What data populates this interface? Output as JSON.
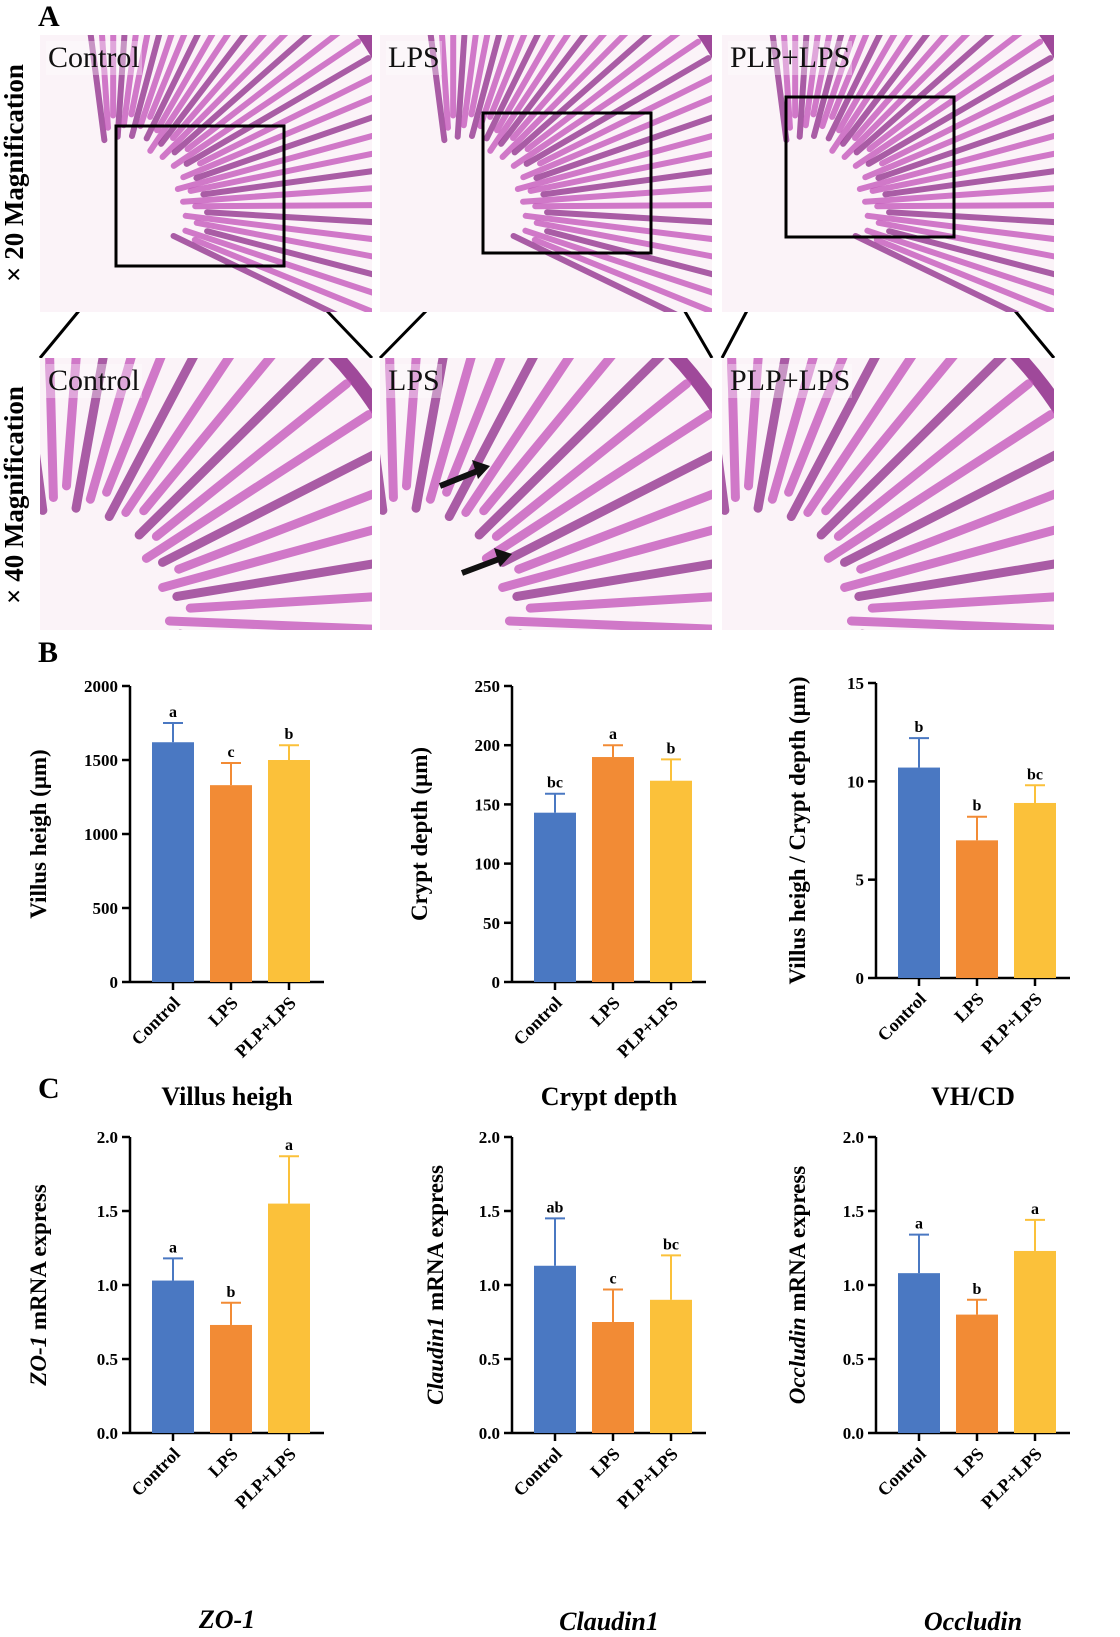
{
  "panel_labels": {
    "a": "A",
    "b": "B",
    "c": "C"
  },
  "row_labels": {
    "top": "× 20 Magnification",
    "bottom": "× 40 Magnification"
  },
  "micrographs": {
    "top": [
      "Control",
      "LPS",
      "PLP+LPS"
    ],
    "bottom": [
      "Control",
      "LPS",
      "PLP+LPS"
    ]
  },
  "colors": {
    "control": "#4a78c2",
    "lps": "#f28b35",
    "plp": "#fbc13a",
    "tissue": "#c24fb8",
    "tissue_dark": "#8e2a8a"
  },
  "chart_data": [
    {
      "id": "villus",
      "type": "bar",
      "categories": [
        "Control",
        "LPS",
        "PLP+LPS"
      ],
      "values": [
        1620,
        1330,
        1500
      ],
      "errors": [
        130,
        150,
        100
      ],
      "letters": [
        "a",
        "c",
        "b"
      ],
      "ylabel": "Villus heigh (μm)",
      "ylabel_italic": "",
      "ylabel_rest": "Villus heigh (μm)",
      "ylim": [
        0,
        2000
      ],
      "ticks": [
        0,
        500,
        1000,
        1500,
        2000
      ],
      "tick_labels": [
        "0",
        "500",
        "1000",
        "1500",
        "2000"
      ],
      "title": "Villus heigh",
      "title_italic": false
    },
    {
      "id": "crypt",
      "type": "bar",
      "categories": [
        "Control",
        "LPS",
        "PLP+LPS"
      ],
      "values": [
        143,
        190,
        170
      ],
      "errors": [
        16,
        10,
        18
      ],
      "letters": [
        "bc",
        "a",
        "b"
      ],
      "ylabel": "Crypt depth (μm)",
      "ylabel_italic": "",
      "ylabel_rest": "Crypt depth (μm)",
      "ylim": [
        0,
        250
      ],
      "ticks": [
        0,
        50,
        100,
        150,
        200,
        250
      ],
      "tick_labels": [
        "0",
        "50",
        "100",
        "150",
        "200",
        "250"
      ],
      "title": "Crypt depth",
      "title_italic": false
    },
    {
      "id": "vhcd",
      "type": "bar",
      "categories": [
        "Control",
        "LPS",
        "PLP+LPS"
      ],
      "values": [
        10.7,
        7.0,
        8.9
      ],
      "errors": [
        1.5,
        1.2,
        0.9
      ],
      "letters": [
        "b",
        "b",
        "bc"
      ],
      "ylabel": "Villus heigh / Crypt depth (μm)",
      "ylabel_italic": "",
      "ylabel_rest": "Villus heigh / Crypt depth (μm)",
      "ylim": [
        0,
        15
      ],
      "ticks": [
        0,
        5,
        10,
        15
      ],
      "tick_labels": [
        "0",
        "5",
        "10",
        "15"
      ],
      "title": "VH/CD",
      "title_italic": false
    },
    {
      "id": "zo1",
      "type": "bar",
      "categories": [
        "Control",
        "LPS",
        "PLP+LPS"
      ],
      "values": [
        1.03,
        0.73,
        1.55
      ],
      "errors": [
        0.15,
        0.15,
        0.32
      ],
      "letters": [
        "a",
        "b",
        "a"
      ],
      "ylabel": "ZO-1 mRNA express",
      "ylabel_italic": "ZO-1",
      "ylabel_rest": " mRNA express",
      "ylim": [
        0,
        2.0
      ],
      "ticks": [
        0,
        0.5,
        1.0,
        1.5,
        2.0
      ],
      "tick_labels": [
        "0.0",
        "0.5",
        "1.0",
        "1.5",
        "2.0"
      ],
      "title": "ZO-1",
      "title_italic": true
    },
    {
      "id": "claudin1",
      "type": "bar",
      "categories": [
        "Control",
        "LPS",
        "PLP+LPS"
      ],
      "values": [
        1.13,
        0.75,
        0.9
      ],
      "errors": [
        0.32,
        0.22,
        0.3
      ],
      "letters": [
        "ab",
        "c",
        "bc"
      ],
      "ylabel": "Claudin1 mRNA express",
      "ylabel_italic": "Claudin1",
      "ylabel_rest": " mRNA express",
      "ylim": [
        0,
        2.0
      ],
      "ticks": [
        0,
        0.5,
        1.0,
        1.5,
        2.0
      ],
      "tick_labels": [
        "0.0",
        "0.5",
        "1.0",
        "1.5",
        "2.0"
      ],
      "title": "Claudin1",
      "title_italic": true
    },
    {
      "id": "occludin",
      "type": "bar",
      "categories": [
        "Control",
        "LPS",
        "PLP+LPS"
      ],
      "values": [
        1.08,
        0.8,
        1.23
      ],
      "errors": [
        0.26,
        0.1,
        0.21
      ],
      "letters": [
        "a",
        "b",
        "a"
      ],
      "ylabel": "Occludin mRNA express",
      "ylabel_italic": "Occludin",
      "ylabel_rest": " mRNA express",
      "ylim": [
        0,
        2.0
      ],
      "ticks": [
        0,
        0.5,
        1.0,
        1.5,
        2.0
      ],
      "tick_labels": [
        "0.0",
        "0.5",
        "1.0",
        "1.5",
        "2.0"
      ],
      "title": "Occludin",
      "title_italic": true
    }
  ]
}
